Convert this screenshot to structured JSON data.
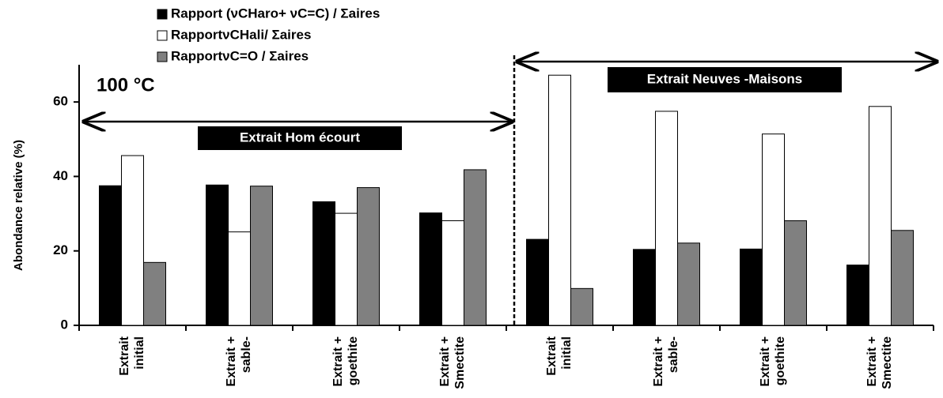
{
  "chart_data": {
    "type": "bar",
    "y_label": "Abondance relative (%)",
    "annotations": [
      "100 °C",
      "Extrait Hom écourt",
      "Extrait Neuves -Maisons"
    ],
    "categories": [
      [
        "Extrait",
        "initial"
      ],
      [
        "Extrait +",
        "sable-"
      ],
      [
        "Extrait +",
        "goethite"
      ],
      [
        "Extrait +",
        "Smectite"
      ],
      [
        "Extrait",
        "initial"
      ],
      [
        "Extrait +",
        "sable-"
      ],
      [
        "Extrait +",
        "goethite"
      ],
      [
        "Extrait +",
        "Smectite"
      ]
    ],
    "series": [
      {
        "name": "Rapport (νCHaro+ νC=C) / Σaires",
        "color": "#000000",
        "values": [
          37.5,
          37.7,
          33.2,
          30.2,
          23.1,
          20.4,
          20.5,
          16.2
        ]
      },
      {
        "name": "RapportνCHali/ Σaires",
        "color": "#ffffff",
        "values": [
          45.6,
          25.1,
          30.1,
          28.1,
          67.2,
          57.5,
          51.4,
          58.8
        ]
      },
      {
        "name": "RapportνC=O / Σaires",
        "color": "#808080",
        "values": [
          16.9,
          37.4,
          37.0,
          41.8,
          9.9,
          22.1,
          28.1,
          25.5
        ]
      }
    ],
    "ylim": [
      0,
      70
    ],
    "yticks": [
      0,
      20,
      40,
      60
    ],
    "grid": false
  }
}
